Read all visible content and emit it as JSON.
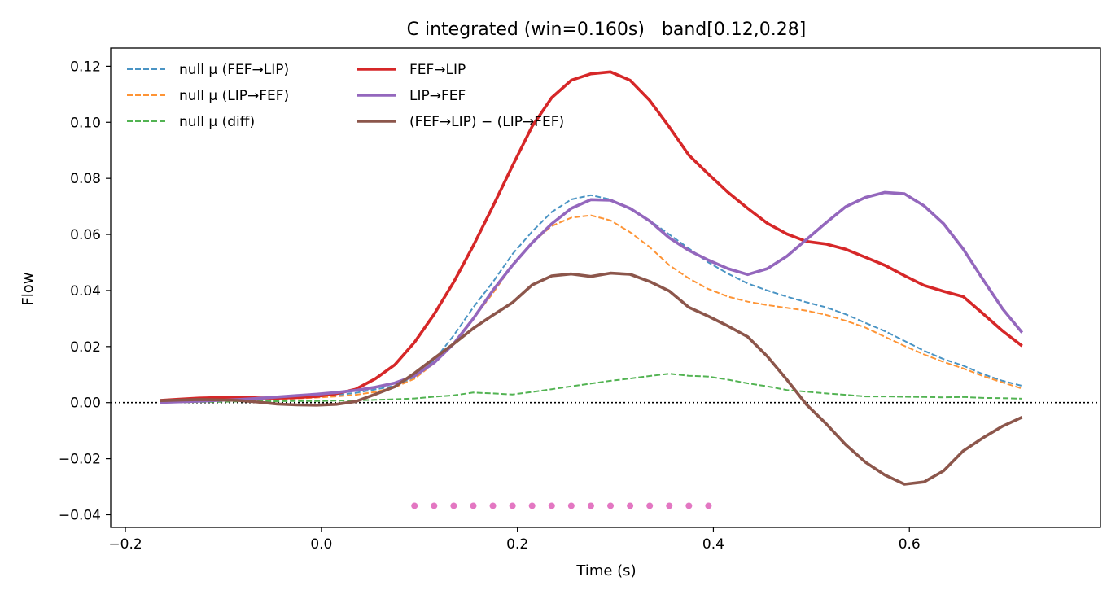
{
  "chart_data": {
    "type": "line",
    "title": "C integrated (win=0.160s)   band[0.12,0.28]",
    "xlabel": "Time (s)",
    "ylabel": "Flow",
    "xlim": [
      -0.215,
      0.795
    ],
    "ylim": [
      -0.0445,
      0.1265
    ],
    "xticks": [
      -0.2,
      0.0,
      0.2,
      0.4,
      0.6
    ],
    "xtick_labels": [
      "−0.2",
      "0.0",
      "0.2",
      "0.4",
      "0.6"
    ],
    "yticks": [
      -0.04,
      -0.02,
      0.0,
      0.02,
      0.04,
      0.06,
      0.08,
      0.1,
      0.12
    ],
    "ytick_labels": [
      "−0.04",
      "−0.02",
      "0.00",
      "0.02",
      "0.04",
      "0.06",
      "0.08",
      "0.10",
      "0.12"
    ],
    "grid": false,
    "legend_position": "top-left",
    "zero_line": 0,
    "x": [
      -0.165,
      -0.145,
      -0.125,
      -0.105,
      -0.085,
      -0.065,
      -0.045,
      -0.025,
      -0.005,
      0.015,
      0.035,
      0.055,
      0.075,
      0.095,
      0.115,
      0.135,
      0.155,
      0.175,
      0.195,
      0.215,
      0.235,
      0.255,
      0.275,
      0.295,
      0.315,
      0.335,
      0.355,
      0.375,
      0.395,
      0.415,
      0.435,
      0.455,
      0.475,
      0.495,
      0.515,
      0.535,
      0.555,
      0.575,
      0.595,
      0.615,
      0.635,
      0.655,
      0.675,
      0.695,
      0.715
    ],
    "series": [
      {
        "name": "null μ (FEF→LIP)",
        "style": "dashed",
        "color": "#4a94c4",
        "values": [
          0.0005,
          0.0006,
          0.0007,
          0.0008,
          0.0009,
          0.001,
          0.0012,
          0.0015,
          0.002,
          0.0027,
          0.0035,
          0.0047,
          0.006,
          0.009,
          0.015,
          0.024,
          0.034,
          0.043,
          0.053,
          0.061,
          0.068,
          0.0725,
          0.074,
          0.0725,
          0.069,
          0.065,
          0.06,
          0.055,
          0.05,
          0.046,
          0.0425,
          0.04,
          0.0378,
          0.0358,
          0.034,
          0.0315,
          0.0285,
          0.0255,
          0.022,
          0.0185,
          0.0155,
          0.0132,
          0.0102,
          0.0078,
          0.006
        ]
      },
      {
        "name": "null μ (LIP→FEF)",
        "style": "dashed",
        "color": "#fe9435",
        "values": [
          0.0005,
          0.0006,
          0.0007,
          0.0008,
          0.0009,
          0.001,
          0.0012,
          0.0015,
          0.0018,
          0.0022,
          0.0028,
          0.0038,
          0.0055,
          0.0085,
          0.014,
          0.021,
          0.03,
          0.039,
          0.049,
          0.057,
          0.063,
          0.066,
          0.0668,
          0.065,
          0.0608,
          0.0555,
          0.049,
          0.0443,
          0.0405,
          0.0378,
          0.036,
          0.0348,
          0.0338,
          0.0328,
          0.0313,
          0.0292,
          0.0268,
          0.0235,
          0.0202,
          0.0172,
          0.0145,
          0.0122,
          0.0095,
          0.0072,
          0.005
        ]
      },
      {
        "name": "null μ (diff)",
        "style": "dashed",
        "color": "#52b352",
        "values": [
          0.0,
          0.0001,
          0.0002,
          0.0003,
          0.0004,
          0.0005,
          0.0005,
          0.0006,
          0.0006,
          0.0007,
          0.0008,
          0.001,
          0.0012,
          0.0015,
          0.0021,
          0.0026,
          0.0036,
          0.0033,
          0.0029,
          0.0038,
          0.0048,
          0.0058,
          0.0068,
          0.0078,
          0.0086,
          0.0095,
          0.0103,
          0.0096,
          0.0093,
          0.0082,
          0.0069,
          0.0058,
          0.0045,
          0.0039,
          0.0033,
          0.0028,
          0.0022,
          0.0022,
          0.0021,
          0.002,
          0.0019,
          0.002,
          0.0017,
          0.0016,
          0.0014
        ]
      },
      {
        "name": "FEF→LIP",
        "style": "solid",
        "color": "#d62728",
        "values": [
          0.0008,
          0.0012,
          0.0016,
          0.0018,
          0.0019,
          0.0017,
          0.0016,
          0.0018,
          0.0022,
          0.0032,
          0.0048,
          0.0085,
          0.0135,
          0.0215,
          0.0315,
          0.043,
          0.056,
          0.07,
          0.0845,
          0.0985,
          0.1088,
          0.115,
          0.1173,
          0.118,
          0.115,
          0.1078,
          0.0983,
          0.0883,
          0.0815,
          0.075,
          0.0693,
          0.064,
          0.0602,
          0.0575,
          0.0566,
          0.0547,
          0.0519,
          0.049,
          0.0453,
          0.0418,
          0.0397,
          0.0378,
          0.0318,
          0.0256,
          0.0202
        ]
      },
      {
        "name": "LIP→FEF",
        "style": "solid",
        "color": "#9467bd",
        "values": [
          0.0001,
          0.0003,
          0.0005,
          0.0008,
          0.0011,
          0.0015,
          0.002,
          0.0025,
          0.003,
          0.0036,
          0.0044,
          0.0055,
          0.007,
          0.0095,
          0.0142,
          0.021,
          0.03,
          0.04,
          0.049,
          0.057,
          0.0638,
          0.0693,
          0.0724,
          0.0722,
          0.0693,
          0.0648,
          0.0588,
          0.0543,
          0.0508,
          0.0478,
          0.0457,
          0.0478,
          0.0522,
          0.0582,
          0.0642,
          0.0699,
          0.0732,
          0.075,
          0.0745,
          0.0702,
          0.0638,
          0.0548,
          0.044,
          0.0335,
          0.025
        ]
      },
      {
        "name": "(FEF→LIP) − (LIP→FEF)",
        "style": "solid",
        "color": "#8c564b",
        "values": [
          0.0007,
          0.0009,
          0.0011,
          0.001,
          0.0008,
          0.0002,
          -0.0005,
          -0.0008,
          -0.0009,
          -0.0006,
          0.0004,
          0.003,
          0.0057,
          0.0105,
          0.0158,
          0.021,
          0.0265,
          0.0312,
          0.0357,
          0.042,
          0.0452,
          0.0459,
          0.045,
          0.0462,
          0.0458,
          0.0432,
          0.0398,
          0.034,
          0.0308,
          0.0273,
          0.0235,
          0.0165,
          0.0082,
          -0.0007,
          -0.0075,
          -0.015,
          -0.0212,
          -0.0258,
          -0.0291,
          -0.0283,
          -0.0243,
          -0.0172,
          -0.0126,
          -0.0084,
          -0.0052
        ]
      }
    ],
    "markers": {
      "color": "#e377c2",
      "y": -0.0368,
      "x": [
        0.095,
        0.115,
        0.135,
        0.155,
        0.175,
        0.195,
        0.215,
        0.235,
        0.255,
        0.275,
        0.295,
        0.315,
        0.335,
        0.355,
        0.375,
        0.395
      ]
    }
  }
}
